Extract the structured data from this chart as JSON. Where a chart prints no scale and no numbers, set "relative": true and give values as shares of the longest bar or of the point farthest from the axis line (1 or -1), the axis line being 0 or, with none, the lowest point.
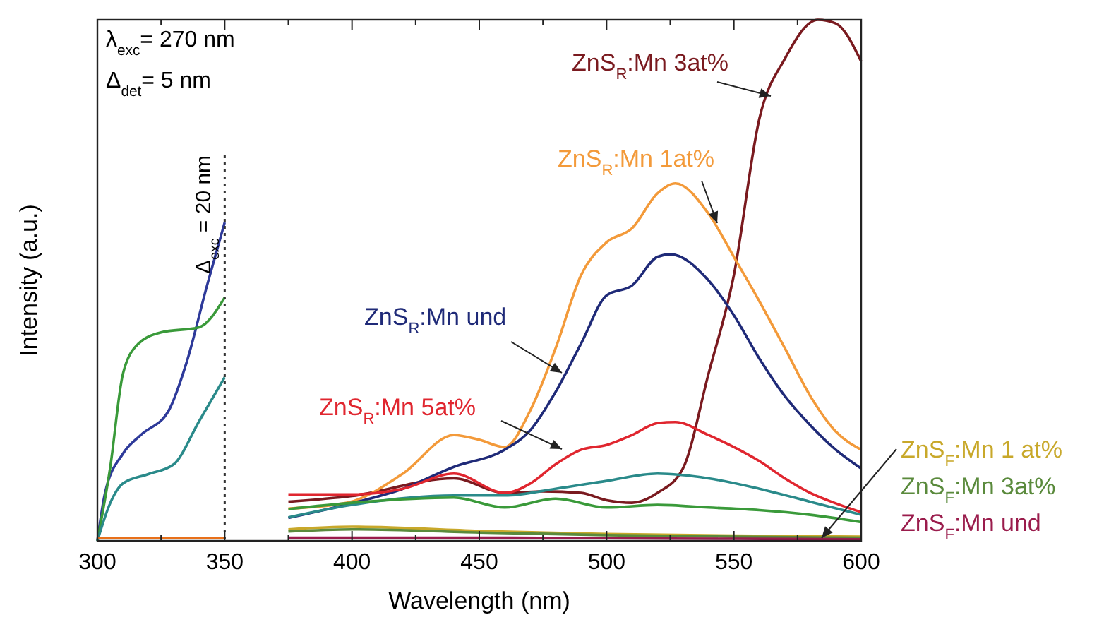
{
  "chart_data": {
    "type": "line",
    "xlabel": "Wavelength (nm)",
    "ylabel": "Intensity (a.u.)",
    "relative": true,
    "xlim": [
      300,
      600
    ],
    "xticks": [
      300,
      {
        "value": 325,
        "label": null
      },
      350,
      {
        "value": 375,
        "label": null
      },
      400,
      {
        "value": 425,
        "label": null
      },
      450,
      {
        "value": 475,
        "label": null
      },
      500,
      {
        "value": 525,
        "label": null
      },
      550,
      {
        "value": 575,
        "label": null
      },
      600
    ],
    "tick_labels": "x",
    "grid": false,
    "line_style": "solid",
    "annotations": [
      "λ$_{exc}$= 270 nm",
      "Δ$_{det}$= 5 nm",
      "Δ$_{exc}$ = 20 nm"
    ],
    "ref_lines": [
      {
        "axis": "x",
        "value": 350,
        "color": "#333333",
        "line_style": "dotted"
      }
    ],
    "series": [
      {
        "name": "ZnS$_{R}$:Mn 3at%",
        "color": "#7a1a1f",
        "x": [
          375,
          400,
          440,
          460,
          475,
          490,
          500,
          510,
          520,
          530,
          540,
          550,
          560,
          570,
          583,
          590,
          600
        ],
        "values": [
          0.075,
          0.086,
          0.12,
          0.092,
          0.095,
          0.092,
          0.078,
          0.073,
          0.092,
          0.139,
          0.32,
          0.51,
          0.81,
          0.925,
          1,
          0.993,
          0.92
        ]
      },
      {
        "name": "ZnS$_{R}$:Mn 1at%",
        "color": "#f39a3a",
        "x": [
          375,
          398,
          420,
          440,
          450,
          460,
          470,
          480,
          490,
          500,
          510,
          520,
          527,
          540,
          550,
          560,
          570,
          580,
          590,
          600
        ],
        "values": [
          0.062,
          0.073,
          0.129,
          0.203,
          0.194,
          0.18,
          0.25,
          0.37,
          0.51,
          0.573,
          0.6,
          0.667,
          0.686,
          0.628,
          0.545,
          0.46,
          0.37,
          0.278,
          0.21,
          0.175
        ]
      },
      {
        "name": "ZnS$_{R}$:Mn und",
        "color": "#1f2a78",
        "x": [
          375,
          400,
          420,
          440,
          460,
          470,
          480,
          490,
          500,
          510,
          520,
          525,
          540,
          550,
          560,
          570,
          580,
          590,
          600
        ],
        "values": [
          0.044,
          0.072,
          0.1,
          0.142,
          0.175,
          0.212,
          0.286,
          0.379,
          0.471,
          0.49,
          0.545,
          0.55,
          0.5,
          0.433,
          0.35,
          0.278,
          0.222,
          0.175,
          0.139
        ]
      },
      {
        "name": "ZnS$_{R}$:Mn 5at%",
        "color": "#e0262f",
        "x": [
          375,
          400,
          420,
          440,
          460,
          470,
          480,
          490,
          500,
          510,
          520,
          527,
          540,
          550,
          560,
          570,
          580,
          590,
          600
        ],
        "values": [
          0.089,
          0.089,
          0.1,
          0.129,
          0.092,
          0.11,
          0.147,
          0.175,
          0.184,
          0.203,
          0.226,
          0.228,
          0.203,
          0.18,
          0.153,
          0.12,
          0.092,
          0.072,
          0.055
        ]
      },
      {
        "name": "ZnS$_{F}$:Mn 1 at%",
        "color": "#c8a82a",
        "x": [
          375,
          400,
          450,
          500,
          550,
          600
        ],
        "values": [
          0.022,
          0.027,
          0.019,
          0.013,
          0.01,
          0.008
        ]
      },
      {
        "name": "ZnS$_{F}$:Mn 3at%",
        "color": "#5a8a3c",
        "x": [
          375,
          400,
          450,
          500,
          550,
          600
        ],
        "values": [
          0.018,
          0.022,
          0.016,
          0.011,
          0.008,
          0.006
        ]
      },
      {
        "name": "ZnS$_{F}$:Mn und",
        "color": "#9a1c4c",
        "x": [
          375,
          450,
          500,
          550,
          600
        ],
        "values": [
          0.006,
          0.006,
          0.005,
          0.004,
          0.003
        ]
      },
      {
        "color": "#2a8a8a",
        "x": [
          375,
          400,
          440,
          460,
          480,
          500,
          520,
          540,
          560,
          580,
          600
        ],
        "values": [
          0.045,
          0.069,
          0.087,
          0.087,
          0.1,
          0.115,
          0.129,
          0.12,
          0.1,
          0.075,
          0.05
        ]
      },
      {
        "color": "#3a9a3a",
        "x": [
          375,
          400,
          440,
          460,
          480,
          500,
          520,
          540,
          560,
          580,
          600
        ],
        "values": [
          0.061,
          0.073,
          0.083,
          0.064,
          0.081,
          0.064,
          0.069,
          0.064,
          0.059,
          0.05,
          0.036
        ]
      },
      {
        "color": "#2e3a9a",
        "x": [
          300,
          303,
          310,
          317,
          328,
          335,
          343,
          350
        ],
        "values": [
          0,
          0.092,
          0.167,
          0.203,
          0.25,
          0.342,
          0.489,
          0.611
        ]
      },
      {
        "color": "#3a9a3a",
        "x": [
          300,
          305,
          310,
          316,
          325,
          340,
          350
        ],
        "values": [
          0,
          0.14,
          0.32,
          0.378,
          0.4,
          0.41,
          0.467
        ]
      },
      {
        "color": "#2a8a8a",
        "x": [
          300,
          305,
          310,
          320,
          330,
          340,
          350
        ],
        "values": [
          0,
          0.072,
          0.11,
          0.128,
          0.147,
          0.23,
          0.314
        ]
      },
      {
        "color": "#e8701a",
        "x": [
          300,
          350
        ],
        "values": [
          0.005,
          0.005
        ]
      }
    ]
  }
}
